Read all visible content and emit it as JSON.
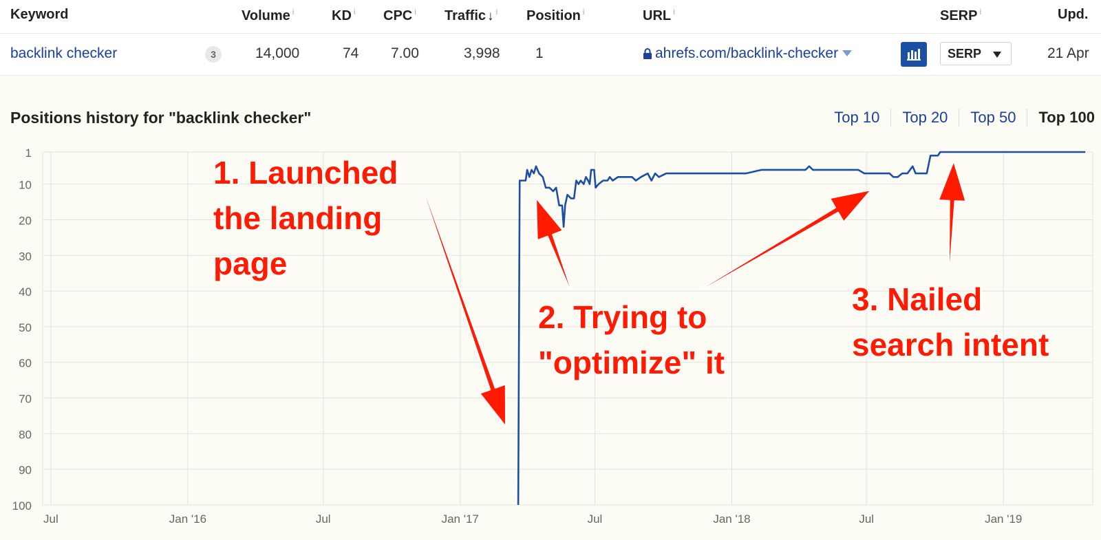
{
  "table": {
    "headers": {
      "keyword": "Keyword",
      "volume": "Volume",
      "kd": "KD",
      "cpc": "CPC",
      "traffic": "Traffic",
      "traffic_sort": "↓",
      "position": "Position",
      "url": "URL",
      "serp": "SERP",
      "updated": "Upd.",
      "info": "i"
    },
    "row": {
      "keyword": "backlink checker",
      "badge": "3",
      "volume": "14,000",
      "kd": "74",
      "cpc": "7.00",
      "traffic": "3,998",
      "position": "1",
      "url": "ahrefs.com/backlink-checker",
      "serp_button": "SERP",
      "updated": "21 Apr"
    }
  },
  "positions": {
    "title": "Positions history for \"backlink checker\"",
    "filters": [
      "Top 10",
      "Top 20",
      "Top 50",
      "Top 100"
    ],
    "active_filter": "Top 100"
  },
  "annotations": [
    {
      "lines": [
        "1. Launched",
        "the landing",
        "page"
      ]
    },
    {
      "lines": [
        "2. Trying to",
        "\"optimize\" it"
      ]
    },
    {
      "lines": [
        "3. Nailed",
        "search intent"
      ]
    }
  ],
  "colors": {
    "line": "#1a4fa3",
    "annotation": "#ff1a00",
    "link": "#1a3f9d"
  },
  "chart_data": {
    "type": "line",
    "title": "Positions history for \"backlink checker\"",
    "xlabel": "",
    "ylabel": "",
    "y_inverted": true,
    "ylim": [
      1,
      100
    ],
    "yticks": [
      1,
      10,
      20,
      30,
      40,
      50,
      60,
      70,
      80,
      90,
      100
    ],
    "xlim": [
      "2015-06-20",
      "2019-05-01"
    ],
    "xticks": [
      {
        "label": "Jul",
        "date": "2015-07-01"
      },
      {
        "label": "Jan '16",
        "date": "2016-01-01"
      },
      {
        "label": "Jul",
        "date": "2016-07-01"
      },
      {
        "label": "Jan '17",
        "date": "2017-01-01"
      },
      {
        "label": "Jul",
        "date": "2017-07-01"
      },
      {
        "label": "Jan '18",
        "date": "2018-01-01"
      },
      {
        "label": "Jul",
        "date": "2018-07-01"
      },
      {
        "label": "Jan '19",
        "date": "2019-01-01"
      }
    ],
    "grid": true,
    "series": [
      {
        "points": [
          [
            "2017-03-20",
            100
          ],
          [
            "2017-03-22",
            9
          ],
          [
            "2017-03-30",
            9
          ],
          [
            "2017-04-01",
            6
          ],
          [
            "2017-04-04",
            8
          ],
          [
            "2017-04-07",
            6
          ],
          [
            "2017-04-10",
            7
          ],
          [
            "2017-04-13",
            5
          ],
          [
            "2017-04-17",
            7
          ],
          [
            "2017-04-22",
            8
          ],
          [
            "2017-04-26",
            11
          ],
          [
            "2017-05-01",
            11
          ],
          [
            "2017-05-06",
            12
          ],
          [
            "2017-05-10",
            11
          ],
          [
            "2017-05-14",
            16
          ],
          [
            "2017-05-18",
            16
          ],
          [
            "2017-05-20",
            22
          ],
          [
            "2017-05-22",
            16
          ],
          [
            "2017-05-25",
            13
          ],
          [
            "2017-05-30",
            14
          ],
          [
            "2017-06-03",
            14
          ],
          [
            "2017-06-06",
            9
          ],
          [
            "2017-06-09",
            10
          ],
          [
            "2017-06-12",
            9
          ],
          [
            "2017-06-16",
            10
          ],
          [
            "2017-06-19",
            8
          ],
          [
            "2017-06-22",
            9
          ],
          [
            "2017-06-24",
            10
          ],
          [
            "2017-06-26",
            6
          ],
          [
            "2017-06-30",
            6
          ],
          [
            "2017-07-02",
            11
          ],
          [
            "2017-07-06",
            10
          ],
          [
            "2017-07-12",
            9
          ],
          [
            "2017-07-18",
            9
          ],
          [
            "2017-07-21",
            8
          ],
          [
            "2017-07-25",
            9
          ],
          [
            "2017-08-01",
            8
          ],
          [
            "2017-08-10",
            8
          ],
          [
            "2017-08-20",
            8
          ],
          [
            "2017-08-25",
            9
          ],
          [
            "2017-09-01",
            8
          ],
          [
            "2017-09-10",
            7
          ],
          [
            "2017-09-15",
            9
          ],
          [
            "2017-09-20",
            7
          ],
          [
            "2017-09-25",
            8
          ],
          [
            "2017-10-05",
            7
          ],
          [
            "2017-10-12",
            7
          ],
          [
            "2017-10-20",
            7
          ],
          [
            "2017-11-15",
            7
          ],
          [
            "2017-12-20",
            7
          ],
          [
            "2018-01-20",
            7
          ],
          [
            "2018-02-10",
            6
          ],
          [
            "2018-03-20",
            6
          ],
          [
            "2018-04-10",
            6
          ],
          [
            "2018-04-15",
            5
          ],
          [
            "2018-04-20",
            6
          ],
          [
            "2018-06-20",
            6
          ],
          [
            "2018-06-28",
            7
          ],
          [
            "2018-08-01",
            7
          ],
          [
            "2018-08-06",
            8
          ],
          [
            "2018-08-12",
            8
          ],
          [
            "2018-08-18",
            7
          ],
          [
            "2018-08-25",
            7
          ],
          [
            "2018-09-01",
            5
          ],
          [
            "2018-09-05",
            7
          ],
          [
            "2018-09-20",
            7
          ],
          [
            "2018-09-25",
            2
          ],
          [
            "2018-10-05",
            2
          ],
          [
            "2018-10-08",
            1
          ],
          [
            "2019-04-21",
            1
          ]
        ]
      }
    ]
  }
}
